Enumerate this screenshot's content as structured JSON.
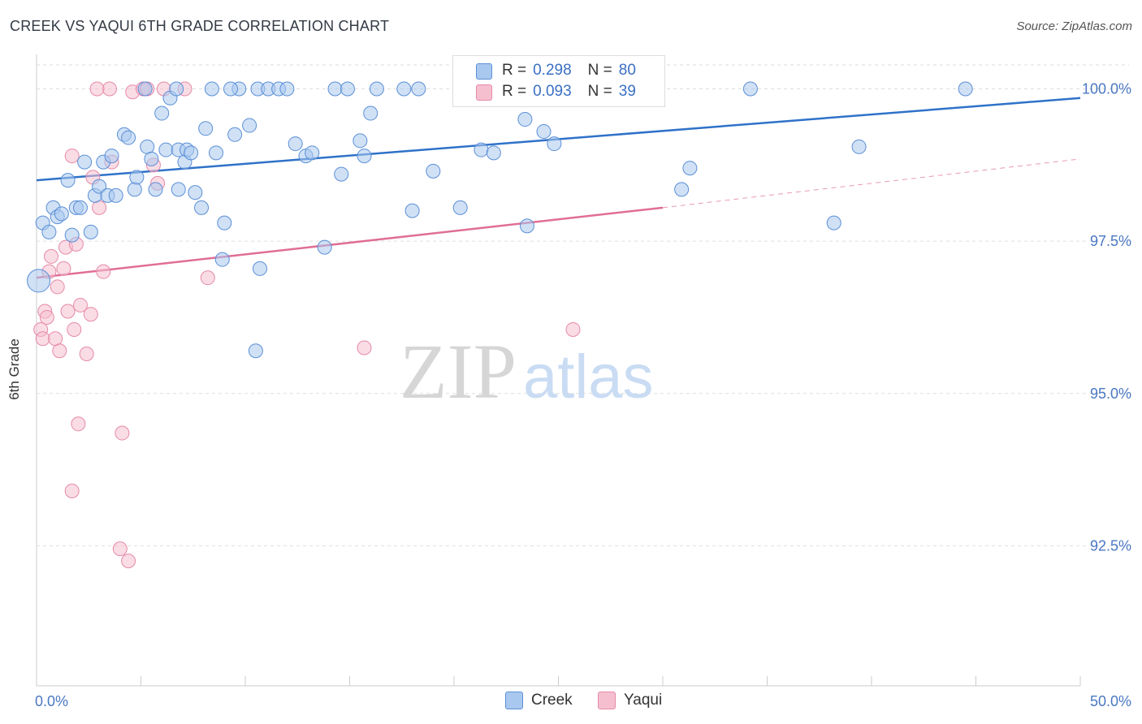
{
  "title": "CREEK VS YAQUI 6TH GRADE CORRELATION CHART",
  "source": "Source: ZipAtlas.com",
  "watermark": {
    "zip": "ZIP",
    "atlas": "atlas"
  },
  "legend": {
    "creek": {
      "r_label": "R =",
      "r_value": "0.298",
      "n_label": "N =",
      "n_value": "80"
    },
    "yaqui": {
      "r_label": "R =",
      "r_value": "0.093",
      "n_label": "N =",
      "n_value": "39"
    }
  },
  "bottom_legend": {
    "creek": "Creek",
    "yaqui": "Yaqui"
  },
  "colors": {
    "creek_fill": "#a9c8ef",
    "creek_stroke": "#5b8fd6",
    "creek_line": "#2f72c9",
    "yaqui_fill": "#f6bfd0",
    "yaqui_stroke": "#e58aa8",
    "yaqui_line": "#e06e96",
    "axis_label": "#4a78c2",
    "grid": "#dddddd"
  },
  "chart_data": {
    "type": "scatter",
    "title": "CREEK VS YAQUI 6TH GRADE CORRELATION CHART",
    "xlabel": "",
    "ylabel": "6th Grade",
    "xlim": [
      0,
      50
    ],
    "ylim": [
      90.2,
      100.5
    ],
    "x_tick_labels": [
      "0.0%",
      "50.0%"
    ],
    "y_ticks": [
      92.5,
      95.0,
      97.5,
      100.0
    ],
    "y_tick_labels": [
      "92.5%",
      "95.0%",
      "97.5%",
      "100.0%"
    ],
    "grid": true,
    "legend_position": "top-center",
    "series": [
      {
        "name": "Creek",
        "points": [
          [
            0.1,
            96.85
          ],
          [
            0.3,
            97.8
          ],
          [
            0.6,
            97.65
          ],
          [
            0.8,
            98.05
          ],
          [
            1.0,
            97.9
          ],
          [
            1.2,
            97.95
          ],
          [
            1.5,
            98.5
          ],
          [
            1.7,
            97.6
          ],
          [
            1.9,
            98.05
          ],
          [
            2.1,
            98.05
          ],
          [
            2.3,
            98.8
          ],
          [
            2.6,
            97.65
          ],
          [
            2.8,
            98.25
          ],
          [
            3.0,
            98.4
          ],
          [
            3.2,
            98.8
          ],
          [
            3.4,
            98.25
          ],
          [
            3.6,
            98.9
          ],
          [
            3.8,
            98.25
          ],
          [
            4.2,
            99.25
          ],
          [
            4.4,
            99.2
          ],
          [
            4.7,
            98.35
          ],
          [
            4.8,
            98.55
          ],
          [
            5.2,
            100.0
          ],
          [
            5.3,
            99.05
          ],
          [
            5.5,
            98.85
          ],
          [
            5.7,
            98.35
          ],
          [
            6.0,
            99.6
          ],
          [
            6.2,
            99.0
          ],
          [
            6.4,
            99.85
          ],
          [
            6.8,
            99.0
          ],
          [
            6.8,
            98.35
          ],
          [
            7.1,
            98.8
          ],
          [
            7.2,
            99.0
          ],
          [
            7.4,
            98.95
          ],
          [
            7.6,
            98.3
          ],
          [
            7.9,
            98.05
          ],
          [
            8.1,
            99.35
          ],
          [
            8.4,
            100.0
          ],
          [
            8.6,
            98.95
          ],
          [
            8.9,
            97.2
          ],
          [
            9.0,
            97.8
          ],
          [
            9.5,
            99.25
          ],
          [
            9.7,
            100.0
          ],
          [
            10.2,
            99.4
          ],
          [
            10.6,
            100.0
          ],
          [
            10.7,
            97.05
          ],
          [
            10.5,
            95.7
          ],
          [
            11.1,
            100.0
          ],
          [
            11.6,
            100.0
          ],
          [
            12.4,
            99.1
          ],
          [
            12.9,
            98.9
          ],
          [
            13.2,
            98.95
          ],
          [
            13.8,
            97.4
          ],
          [
            14.3,
            100.0
          ],
          [
            14.6,
            98.6
          ],
          [
            14.9,
            100.0
          ],
          [
            15.5,
            99.15
          ],
          [
            15.7,
            98.9
          ],
          [
            16.0,
            99.6
          ],
          [
            16.3,
            100.0
          ],
          [
            17.6,
            100.0
          ],
          [
            18.0,
            98.0
          ],
          [
            18.3,
            100.0
          ],
          [
            19.0,
            98.65
          ],
          [
            20.3,
            98.05
          ],
          [
            21.3,
            99.0
          ],
          [
            21.9,
            98.95
          ],
          [
            23.4,
            99.5
          ],
          [
            23.5,
            97.75
          ],
          [
            24.3,
            99.3
          ],
          [
            24.8,
            99.1
          ],
          [
            30.9,
            98.35
          ],
          [
            31.3,
            98.7
          ],
          [
            34.2,
            100.0
          ],
          [
            38.2,
            97.8
          ],
          [
            39.4,
            99.05
          ],
          [
            44.5,
            100.0
          ],
          [
            12.0,
            100.0
          ],
          [
            9.3,
            100.0
          ],
          [
            6.7,
            100.0
          ]
        ],
        "trend": {
          "x": [
            0,
            50
          ],
          "y": [
            98.5,
            99.85
          ]
        }
      },
      {
        "name": "Yaqui",
        "points": [
          [
            0.2,
            96.05
          ],
          [
            0.3,
            95.9
          ],
          [
            0.4,
            96.35
          ],
          [
            0.5,
            96.25
          ],
          [
            0.6,
            97.0
          ],
          [
            0.7,
            97.25
          ],
          [
            0.9,
            95.9
          ],
          [
            1.0,
            96.75
          ],
          [
            1.1,
            95.7
          ],
          [
            1.3,
            97.05
          ],
          [
            1.4,
            97.4
          ],
          [
            1.5,
            96.35
          ],
          [
            1.7,
            98.9
          ],
          [
            1.8,
            96.05
          ],
          [
            1.9,
            97.45
          ],
          [
            2.0,
            94.5
          ],
          [
            2.1,
            96.45
          ],
          [
            2.4,
            95.65
          ],
          [
            2.6,
            96.3
          ],
          [
            2.7,
            98.55
          ],
          [
            3.0,
            98.05
          ],
          [
            3.2,
            97.0
          ],
          [
            3.6,
            98.8
          ],
          [
            4.0,
            92.45
          ],
          [
            4.1,
            94.35
          ],
          [
            4.4,
            92.25
          ],
          [
            4.6,
            99.95
          ],
          [
            5.1,
            100.0
          ],
          [
            5.3,
            100.0
          ],
          [
            5.6,
            98.75
          ],
          [
            5.8,
            98.45
          ],
          [
            6.1,
            100.0
          ],
          [
            7.1,
            100.0
          ],
          [
            8.2,
            96.9
          ],
          [
            3.5,
            100.0
          ],
          [
            2.9,
            100.0
          ],
          [
            1.7,
            93.4
          ],
          [
            15.7,
            95.75
          ],
          [
            25.7,
            96.05
          ]
        ],
        "trend": {
          "x": [
            0,
            30
          ],
          "y": [
            96.9,
            98.05
          ]
        },
        "trend_dashed": {
          "x": [
            30,
            50
          ],
          "y": [
            98.05,
            98.85
          ]
        }
      }
    ]
  }
}
